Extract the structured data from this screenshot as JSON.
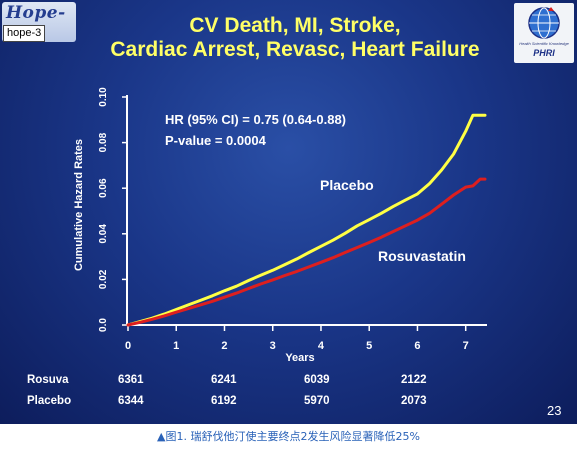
{
  "logos": {
    "left_script": "Hope-3",
    "left_tag": "hope-3",
    "right_subtitle": "Health Scientific Knowledge",
    "right_name": "PHRI"
  },
  "slide": {
    "title_line1": "CV Death, MI, Stroke,",
    "title_line2": "Cardiac Arrest, Revasc, Heart Failure",
    "hr_text": "HR (95% CI) = 0.75 (0.64-0.88)",
    "p_text": "P-value = 0.0004",
    "page_number": "23"
  },
  "risk_table": {
    "rows": [
      {
        "label": "Rosuva",
        "values": [
          "6361",
          "6241",
          "6039",
          "2122"
        ]
      },
      {
        "label": "Placebo",
        "values": [
          "6344",
          "6192",
          "5970",
          "2073"
        ]
      }
    ]
  },
  "caption": "▲图1. 瑞舒伐他汀使主要终点2发生风险显著降低25%",
  "colors": {
    "background": "#1a3688",
    "title": "#ffff66",
    "placebo": "#ffff44",
    "rosuvastatin": "#dd1f1f",
    "text": "#ffffff",
    "caption": "#2a62b8"
  },
  "chart_data": {
    "type": "line",
    "title": "",
    "xlabel": "Years",
    "ylabel": "Cumulative Hazard Rates",
    "xlim": [
      0,
      7.4
    ],
    "ylim": [
      0,
      0.1
    ],
    "x_ticks": [
      "0",
      "1",
      "2",
      "3",
      "4",
      "5",
      "6",
      "7"
    ],
    "y_ticks": [
      "0.0",
      "0.02",
      "0.04",
      "0.06",
      "0.08",
      "0.10"
    ],
    "grid": false,
    "series": [
      {
        "name": "Placebo",
        "x": [
          0,
          0.25,
          0.5,
          0.75,
          1,
          1.25,
          1.5,
          1.75,
          2,
          2.25,
          2.5,
          2.75,
          3,
          3.25,
          3.5,
          3.75,
          4,
          4.25,
          4.5,
          4.75,
          5,
          5.25,
          5.5,
          5.75,
          6,
          6.25,
          6.5,
          6.75,
          7,
          7.15,
          7.4
        ],
        "y": [
          0,
          0.0015,
          0.003,
          0.0048,
          0.0068,
          0.0088,
          0.0108,
          0.0128,
          0.015,
          0.017,
          0.0195,
          0.0218,
          0.024,
          0.0265,
          0.029,
          0.0318,
          0.0345,
          0.0372,
          0.0402,
          0.0435,
          0.0462,
          0.049,
          0.052,
          0.0548,
          0.0575,
          0.062,
          0.068,
          0.075,
          0.085,
          0.092,
          0.092
        ]
      },
      {
        "name": "Rosuvastatin",
        "x": [
          0,
          0.25,
          0.5,
          0.75,
          1,
          1.25,
          1.5,
          1.75,
          2,
          2.25,
          2.5,
          2.75,
          3,
          3.25,
          3.5,
          3.75,
          4,
          4.25,
          4.5,
          4.75,
          5,
          5.25,
          5.5,
          5.75,
          6,
          6.25,
          6.5,
          6.75,
          7,
          7.15,
          7.3,
          7.4
        ],
        "y": [
          0,
          0.0012,
          0.0025,
          0.004,
          0.0056,
          0.0072,
          0.0088,
          0.0104,
          0.0122,
          0.014,
          0.016,
          0.018,
          0.0198,
          0.0217,
          0.0235,
          0.0255,
          0.0275,
          0.0295,
          0.0318,
          0.034,
          0.0362,
          0.0385,
          0.041,
          0.0435,
          0.046,
          0.049,
          0.053,
          0.057,
          0.0605,
          0.061,
          0.064,
          0.064
        ]
      }
    ],
    "annotations": [
      {
        "text": "Placebo",
        "series": "Placebo"
      },
      {
        "text": "Rosuvastatin",
        "series": "Rosuvastatin"
      }
    ]
  }
}
